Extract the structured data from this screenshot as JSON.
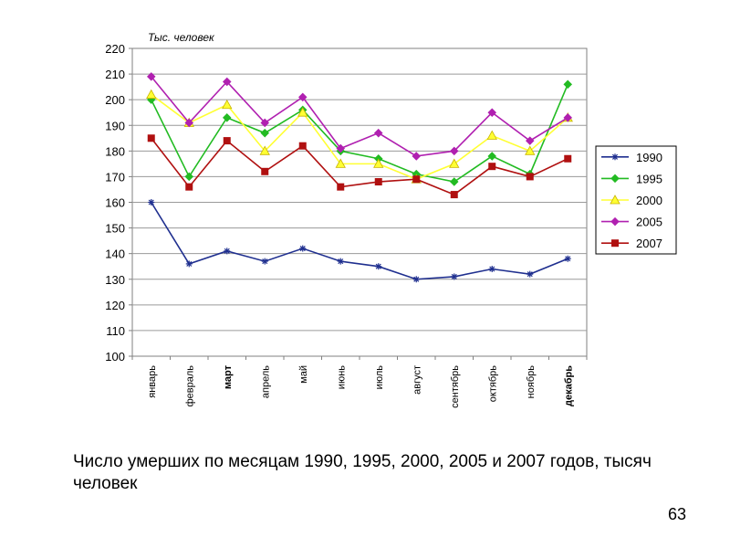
{
  "chart_data": {
    "type": "line",
    "unit_label": "Тыс. человек",
    "categories": [
      "январь",
      "февраль",
      "март",
      "апрель",
      "май",
      "июнь",
      "июль",
      "август",
      "сентябрь",
      "октябрь",
      "ноябрь",
      "декабрь"
    ],
    "bold_categories": [
      "март",
      "декабрь"
    ],
    "ylim": [
      100,
      220
    ],
    "yticks": [
      100,
      110,
      120,
      130,
      140,
      150,
      160,
      170,
      180,
      190,
      200,
      210,
      220
    ],
    "grid": true,
    "legend_position": "right",
    "series": [
      {
        "name": "1990",
        "color": "#1f2f8f",
        "marker": "star",
        "values": [
          160,
          136,
          141,
          137,
          142,
          137,
          135,
          130,
          131,
          134,
          132,
          138
        ]
      },
      {
        "name": "1995",
        "color": "#22bb22",
        "marker": "diamond",
        "values": [
          200,
          170,
          193,
          187,
          196,
          180,
          177,
          171,
          168,
          178,
          171,
          206
        ]
      },
      {
        "name": "2000",
        "color": "#ffff33",
        "marker": "triangle",
        "values": [
          202,
          191,
          198,
          180,
          195,
          175,
          175,
          169,
          175,
          186,
          180,
          193
        ]
      },
      {
        "name": "2005",
        "color": "#b020b0",
        "marker": "diamond",
        "values": [
          209,
          191,
          207,
          191,
          201,
          181,
          187,
          178,
          180,
          195,
          184,
          193
        ]
      },
      {
        "name": "2007",
        "color": "#b01010",
        "marker": "square",
        "values": [
          185,
          166,
          184,
          172,
          182,
          166,
          168,
          169,
          163,
          174,
          170,
          177
        ]
      }
    ]
  },
  "caption": "Число умерших по месяцам 1990, 1995, 2000, 2005 и 2007 годов, тысяч человек",
  "page_number": "63"
}
